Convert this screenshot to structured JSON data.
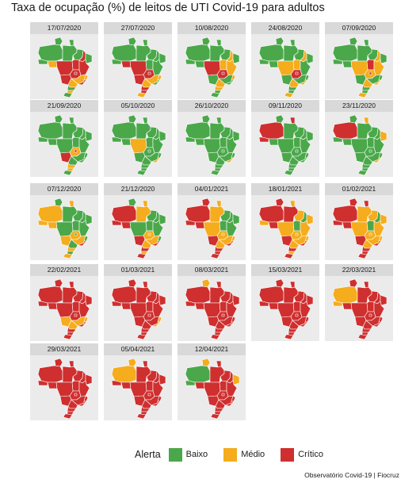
{
  "title": "Taxa de ocupação (%) de leitos de UTI Covid-19 para adultos",
  "caption": "Observatório Covid-19 | Fiocruz",
  "legend": {
    "title": "Alerta",
    "levels": [
      {
        "key": "baixo",
        "label": "Baixo",
        "color": "#4aa84a"
      },
      {
        "key": "medio",
        "label": "Médio",
        "color": "#f5ac1d"
      },
      {
        "key": "critico",
        "label": "Crítico",
        "color": "#cf2f2f"
      }
    ]
  },
  "colors": {
    "panel_background": "#ebebeb",
    "strip_background": "#d9d9d9",
    "state_border": "#ffffff"
  },
  "map_data": {
    "type": "choropleth-small-multiples",
    "region": "Brazil (states)",
    "metric": "Alerta level by state",
    "panels": [
      {
        "date": "17/07/2020",
        "states": {
          "AC": "baixo",
          "AM": "baixo",
          "RR": "baixo",
          "PA": "baixo",
          "AP": "baixo",
          "RO": "medio",
          "MT": "critico",
          "TO": "critico",
          "MA": "baixo",
          "PI": "critico",
          "GO": "critico",
          "MS": "critico",
          "BA": "critico",
          "MG": "medio",
          "SP": "medio",
          "PR": "baixo",
          "SC": "medio",
          "RS": "baixo",
          "NE": "baixo",
          "ES": "medio",
          "RJ": "critico",
          "DF": "critico"
        }
      },
      {
        "date": "27/07/2020",
        "states": {
          "AC": "baixo",
          "AM": "baixo",
          "RR": "baixo",
          "PA": "baixo",
          "AP": "baixo",
          "RO": "critico",
          "MT": "critico",
          "TO": "baixo",
          "MA": "baixo",
          "PI": "baixo",
          "GO": "critico",
          "MS": "critico",
          "BA": "baixo",
          "MG": "medio",
          "SP": "medio",
          "PR": "critico",
          "SC": "critico",
          "RS": "medio",
          "NE": "baixo",
          "ES": "medio",
          "RJ": "baixo",
          "DF": "critico"
        }
      },
      {
        "date": "10/08/2020",
        "states": {
          "AC": "baixo",
          "AM": "baixo",
          "RR": "baixo",
          "PA": "baixo",
          "AP": "baixo",
          "RO": "baixo",
          "MT": "critico",
          "TO": "medio",
          "MA": "baixo",
          "PI": "medio",
          "GO": "critico",
          "MS": "baixo",
          "BA": "medio",
          "MG": "baixo",
          "SP": "medio",
          "PR": "medio",
          "SC": "baixo",
          "RS": "baixo",
          "NE": "baixo",
          "ES": "medio",
          "RJ": "baixo",
          "DF": "critico"
        }
      },
      {
        "date": "24/08/2020",
        "states": {
          "AC": "baixo",
          "AM": "baixo",
          "RR": "baixo",
          "PA": "baixo",
          "AP": "baixo",
          "RO": "baixo",
          "MT": "medio",
          "TO": "medio",
          "MA": "baixo",
          "PI": "medio",
          "GO": "critico",
          "MS": "baixo",
          "BA": "baixo",
          "MG": "baixo",
          "SP": "medio",
          "PR": "baixo",
          "SC": "baixo",
          "RS": "medio",
          "NE": "baixo",
          "ES": "baixo",
          "RJ": "medio",
          "DF": "critico"
        }
      },
      {
        "date": "07/09/2020",
        "states": {
          "AC": "baixo",
          "AM": "baixo",
          "RR": "baixo",
          "PA": "baixo",
          "AP": "baixo",
          "RO": "baixo",
          "MT": "medio",
          "TO": "critico",
          "MA": "baixo",
          "PI": "medio",
          "GO": "medio",
          "MS": "baixo",
          "BA": "medio",
          "MG": "baixo",
          "SP": "medio",
          "PR": "baixo",
          "SC": "baixo",
          "RS": "medio",
          "NE": "baixo",
          "ES": "baixo",
          "RJ": "medio",
          "DF": "critico"
        }
      },
      {
        "date": "21/09/2020",
        "states": {
          "AC": "baixo",
          "AM": "baixo",
          "RR": "baixo",
          "PA": "baixo",
          "AP": "baixo",
          "RO": "baixo",
          "MT": "baixo",
          "TO": "baixo",
          "MA": "baixo",
          "PI": "baixo",
          "GO": "medio",
          "MS": "critico",
          "BA": "baixo",
          "MG": "baixo",
          "SP": "baixo",
          "PR": "medio",
          "SC": "medio",
          "RS": "baixo",
          "NE": "baixo",
          "ES": "baixo",
          "RJ": "baixo",
          "DF": "critico"
        }
      },
      {
        "date": "05/10/2020",
        "states": {
          "AC": "baixo",
          "AM": "baixo",
          "RR": "baixo",
          "PA": "baixo",
          "AP": "baixo",
          "RO": "baixo",
          "MT": "medio",
          "TO": "baixo",
          "MA": "baixo",
          "PI": "baixo",
          "GO": "baixo",
          "MS": "baixo",
          "BA": "baixo",
          "MG": "baixo",
          "SP": "baixo",
          "PR": "baixo",
          "SC": "baixo",
          "RS": "baixo",
          "NE": "baixo",
          "ES": "baixo",
          "RJ": "medio",
          "DF": "baixo"
        }
      },
      {
        "date": "26/10/2020",
        "states": {
          "AC": "baixo",
          "AM": "baixo",
          "RR": "baixo",
          "PA": "baixo",
          "AP": "baixo",
          "RO": "baixo",
          "MT": "baixo",
          "TO": "baixo",
          "MA": "baixo",
          "PI": "baixo",
          "GO": "baixo",
          "MS": "baixo",
          "BA": "baixo",
          "MG": "baixo",
          "SP": "baixo",
          "PR": "baixo",
          "SC": "baixo",
          "RS": "baixo",
          "NE": "baixo",
          "ES": "baixo",
          "RJ": "medio",
          "DF": "baixo"
        }
      },
      {
        "date": "09/11/2020",
        "states": {
          "AC": "critico",
          "AM": "critico",
          "RR": "baixo",
          "PA": "baixo",
          "AP": "critico",
          "RO": "baixo",
          "MT": "baixo",
          "TO": "baixo",
          "MA": "baixo",
          "PI": "baixo",
          "GO": "baixo",
          "MS": "baixo",
          "BA": "baixo",
          "MG": "baixo",
          "SP": "baixo",
          "PR": "baixo",
          "SC": "baixo",
          "RS": "baixo",
          "NE": "baixo",
          "ES": "baixo",
          "RJ": "baixo",
          "DF": "baixo"
        }
      },
      {
        "date": "23/11/2020",
        "states": {
          "AC": "baixo",
          "AM": "critico",
          "RR": "baixo",
          "PA": "baixo",
          "AP": "medio",
          "RO": "baixo",
          "MT": "baixo",
          "TO": "baixo",
          "MA": "baixo",
          "PI": "baixo",
          "GO": "baixo",
          "MS": "baixo",
          "BA": "baixo",
          "MG": "baixo",
          "SP": "baixo",
          "PR": "baixo",
          "SC": "baixo",
          "RS": "baixo",
          "NE": "medio",
          "ES": "baixo",
          "RJ": "medio",
          "DF": "baixo"
        }
      },
      {
        "date": "07/12/2020",
        "states": {
          "AC": "medio",
          "AM": "medio",
          "RR": "baixo",
          "PA": "baixo",
          "AP": "medio",
          "RO": "medio",
          "MT": "baixo",
          "TO": "baixo",
          "MA": "baixo",
          "PI": "baixo",
          "GO": "medio",
          "MS": "medio",
          "BA": "baixo",
          "MG": "medio",
          "SP": "baixo",
          "PR": "medio",
          "SC": "baixo",
          "RS": "medio",
          "NE": "baixo",
          "ES": "baixo",
          "RJ": "critico",
          "DF": "baixo"
        }
      },
      {
        "date": "21/12/2020",
        "states": {
          "AC": "critico",
          "AM": "critico",
          "RR": "baixo",
          "PA": "medio",
          "AP": "medio",
          "RO": "critico",
          "MT": "baixo",
          "TO": "baixo",
          "MA": "baixo",
          "PI": "baixo",
          "GO": "medio",
          "MS": "critico",
          "BA": "baixo",
          "MG": "medio",
          "SP": "medio",
          "PR": "critico",
          "SC": "medio",
          "RS": "critico",
          "NE": "baixo",
          "ES": "baixo",
          "RJ": "critico",
          "DF": "medio"
        }
      },
      {
        "date": "04/01/2021",
        "states": {
          "AC": "critico",
          "AM": "critico",
          "RR": "critico",
          "PA": "medio",
          "AP": "medio",
          "RO": "critico",
          "MT": "medio",
          "TO": "baixo",
          "MA": "baixo",
          "PI": "baixo",
          "GO": "medio",
          "MS": "critico",
          "BA": "baixo",
          "MG": "medio",
          "SP": "medio",
          "PR": "critico",
          "SC": "critico",
          "RS": "critico",
          "NE": "baixo",
          "ES": "medio",
          "RJ": "critico",
          "DF": "medio"
        }
      },
      {
        "date": "18/01/2021",
        "states": {
          "AC": "medio",
          "AM": "critico",
          "RR": "critico",
          "PA": "critico",
          "AP": "medio",
          "RO": "critico",
          "MT": "medio",
          "TO": "baixo",
          "MA": "medio",
          "PI": "baixo",
          "GO": "medio",
          "MS": "critico",
          "BA": "medio",
          "MG": "medio",
          "SP": "medio",
          "PR": "critico",
          "SC": "medio",
          "RS": "critico",
          "NE": "medio",
          "ES": "medio",
          "RJ": "critico",
          "DF": "medio"
        }
      },
      {
        "date": "01/02/2021",
        "states": {
          "AC": "critico",
          "AM": "critico",
          "RR": "critico",
          "PA": "medio",
          "AP": "critico",
          "RO": "critico",
          "MT": "medio",
          "TO": "baixo",
          "MA": "medio",
          "PI": "baixo",
          "GO": "medio",
          "MS": "critico",
          "BA": "medio",
          "MG": "medio",
          "SP": "medio",
          "PR": "critico",
          "SC": "critico",
          "RS": "critico",
          "NE": "medio",
          "ES": "medio",
          "RJ": "critico",
          "DF": "medio"
        }
      },
      {
        "date": "22/02/2021",
        "states": {
          "AC": "critico",
          "AM": "critico",
          "RR": "critico",
          "PA": "critico",
          "AP": "critico",
          "RO": "critico",
          "MT": "critico",
          "TO": "critico",
          "MA": "critico",
          "PI": "critico",
          "GO": "critico",
          "MS": "medio",
          "BA": "critico",
          "MG": "medio",
          "SP": "medio",
          "PR": "critico",
          "SC": "critico",
          "RS": "critico",
          "NE": "critico",
          "ES": "medio",
          "RJ": "critico",
          "DF": "critico"
        }
      },
      {
        "date": "01/03/2021",
        "states": {
          "AC": "critico",
          "AM": "critico",
          "RR": "critico",
          "PA": "critico",
          "AP": "critico",
          "RO": "critico",
          "MT": "critico",
          "TO": "critico",
          "MA": "critico",
          "PI": "critico",
          "GO": "critico",
          "MS": "critico",
          "BA": "critico",
          "MG": "critico",
          "SP": "critico",
          "PR": "critico",
          "SC": "critico",
          "RS": "critico",
          "NE": "critico",
          "ES": "medio",
          "RJ": "medio",
          "DF": "critico"
        }
      },
      {
        "date": "08/03/2021",
        "states": {
          "AC": "critico",
          "AM": "critico",
          "RR": "medio",
          "PA": "critico",
          "AP": "critico",
          "RO": "critico",
          "MT": "critico",
          "TO": "critico",
          "MA": "critico",
          "PI": "critico",
          "GO": "critico",
          "MS": "critico",
          "BA": "critico",
          "MG": "critico",
          "SP": "critico",
          "PR": "critico",
          "SC": "critico",
          "RS": "critico",
          "NE": "critico",
          "ES": "critico",
          "RJ": "critico",
          "DF": "critico"
        }
      },
      {
        "date": "15/03/2021",
        "states": {
          "AC": "critico",
          "AM": "critico",
          "RR": "critico",
          "PA": "critico",
          "AP": "critico",
          "RO": "critico",
          "MT": "critico",
          "TO": "critico",
          "MA": "critico",
          "PI": "critico",
          "GO": "critico",
          "MS": "critico",
          "BA": "critico",
          "MG": "critico",
          "SP": "critico",
          "PR": "critico",
          "SC": "critico",
          "RS": "critico",
          "NE": "critico",
          "ES": "critico",
          "RJ": "critico",
          "DF": "critico"
        }
      },
      {
        "date": "22/03/2021",
        "states": {
          "AC": "medio",
          "AM": "medio",
          "RR": "critico",
          "PA": "critico",
          "AP": "critico",
          "RO": "critico",
          "MT": "critico",
          "TO": "critico",
          "MA": "critico",
          "PI": "critico",
          "GO": "critico",
          "MS": "critico",
          "BA": "critico",
          "MG": "critico",
          "SP": "critico",
          "PR": "critico",
          "SC": "critico",
          "RS": "critico",
          "NE": "critico",
          "ES": "critico",
          "RJ": "critico",
          "DF": "critico"
        }
      },
      {
        "date": "29/03/2021",
        "states": {
          "AC": "critico",
          "AM": "critico",
          "RR": "critico",
          "PA": "critico",
          "AP": "critico",
          "RO": "critico",
          "MT": "critico",
          "TO": "critico",
          "MA": "critico",
          "PI": "critico",
          "GO": "critico",
          "MS": "critico",
          "BA": "critico",
          "MG": "critico",
          "SP": "critico",
          "PR": "critico",
          "SC": "critico",
          "RS": "critico",
          "NE": "critico",
          "ES": "critico",
          "RJ": "critico",
          "DF": "critico"
        }
      },
      {
        "date": "05/04/2021",
        "states": {
          "AC": "critico",
          "AM": "medio",
          "RR": "medio",
          "PA": "critico",
          "AP": "critico",
          "RO": "critico",
          "MT": "critico",
          "TO": "critico",
          "MA": "critico",
          "PI": "critico",
          "GO": "critico",
          "MS": "critico",
          "BA": "critico",
          "MG": "critico",
          "SP": "critico",
          "PR": "critico",
          "SC": "critico",
          "RS": "critico",
          "NE": "critico",
          "ES": "critico",
          "RJ": "critico",
          "DF": "critico"
        }
      },
      {
        "date": "12/04/2021",
        "states": {
          "AC": "baixo",
          "AM": "baixo",
          "RR": "medio",
          "PA": "critico",
          "AP": "critico",
          "RO": "critico",
          "MT": "critico",
          "TO": "critico",
          "MA": "critico",
          "PI": "critico",
          "GO": "critico",
          "MS": "critico",
          "BA": "critico",
          "MG": "critico",
          "SP": "critico",
          "PR": "critico",
          "SC": "critico",
          "RS": "critico",
          "NE": "medio",
          "ES": "critico",
          "RJ": "critico",
          "DF": "critico"
        }
      }
    ]
  }
}
